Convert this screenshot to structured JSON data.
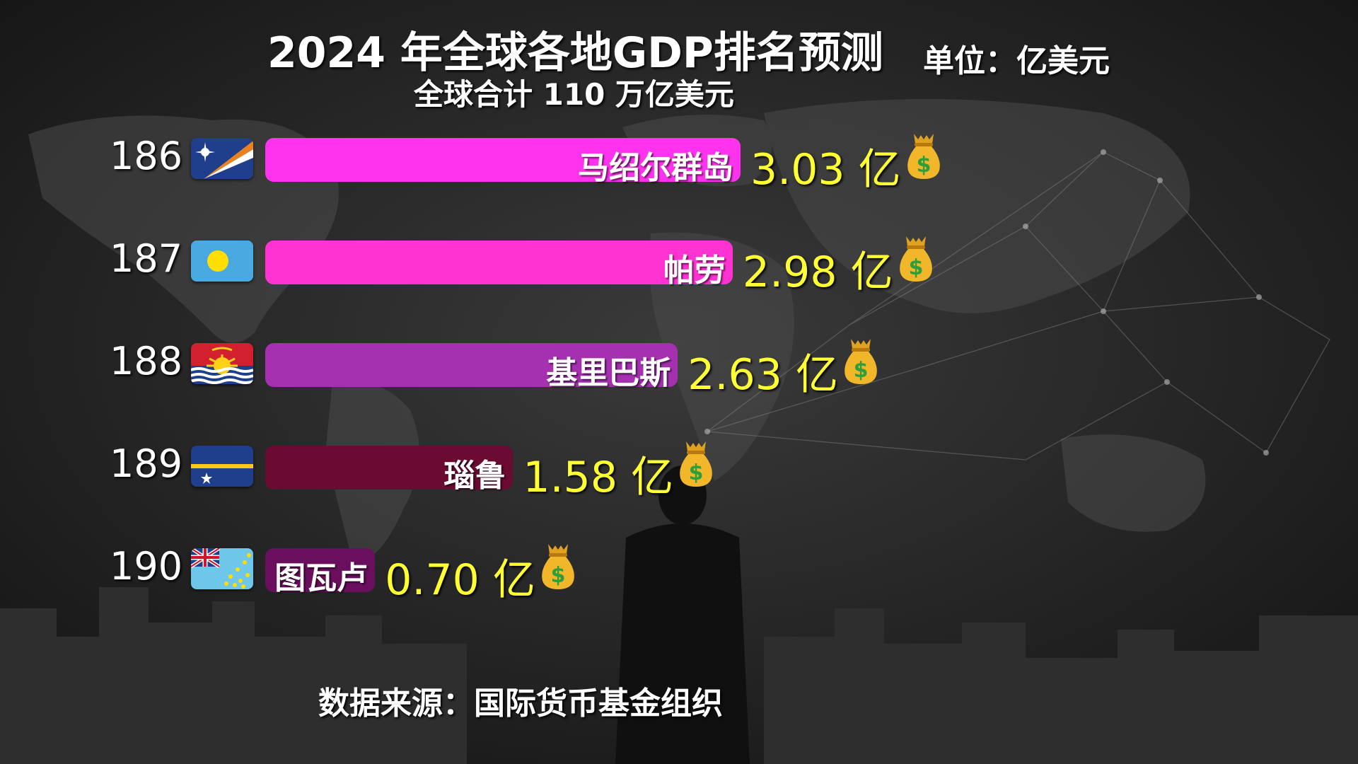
{
  "title": "2024 年全球各地GDP排名预测",
  "unit": "单位：亿美元",
  "subtitle": "全球合计 110 万亿美元",
  "source": "数据来源：国际货币基金组织",
  "value_suffix": " 亿",
  "bag_icon": "money-bag-icon",
  "chart_data": {
    "type": "bar",
    "orientation": "horizontal",
    "title": "2024 年全球各地GDP排名预测",
    "subtitle": "全球合计 110 万亿美元",
    "unit": "单位：亿美元",
    "categories": [
      "马绍尔群岛",
      "帕劳",
      "基里巴斯",
      "瑙鲁",
      "图瓦卢"
    ],
    "ranks": [
      186,
      187,
      188,
      189,
      190
    ],
    "values": [
      3.03,
      2.98,
      2.63,
      1.58,
      0.7
    ],
    "value_labels": [
      "3.03",
      "2.98",
      "2.63",
      "1.58",
      "0.70"
    ],
    "colors": [
      "#ff33ee",
      "#ff33d2",
      "#a531b0",
      "#6b0a33",
      "#6a0f5e"
    ],
    "flags": [
      "marshall-islands-flag",
      "palau-flag",
      "kiribati-flag",
      "nauru-flag",
      "tuvalu-flag"
    ],
    "xlim": [
      0,
      3.03
    ]
  }
}
